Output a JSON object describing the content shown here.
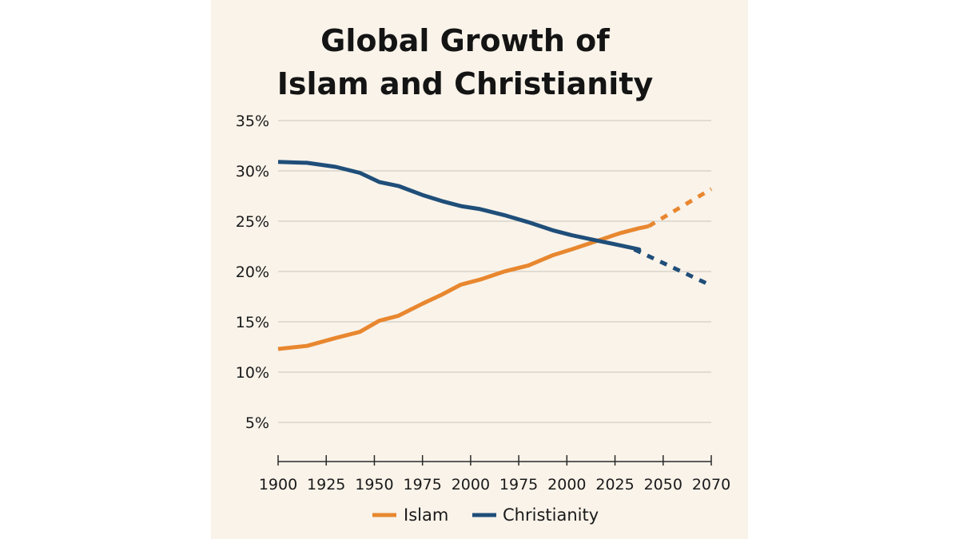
{
  "chart_data": {
    "type": "line",
    "title_lines": [
      "Global Growth of",
      "Islam and Christianity"
    ],
    "x_tick_labels": [
      "1900",
      "1925",
      "1950",
      "1975",
      "2000",
      "1975",
      "2000",
      "2025",
      "2050",
      "2070"
    ],
    "y_tick_labels": [
      "35%",
      "30%",
      "25%",
      "20%",
      "15%",
      "10%",
      "5%"
    ],
    "y_ticks": [
      35,
      30,
      25,
      20,
      15,
      10,
      5
    ],
    "ylim": [
      0,
      35
    ],
    "x_range": [
      0,
      9
    ],
    "grid": true,
    "legend_position": "bottom-center",
    "series": [
      {
        "name": "Islam",
        "color": "#e8872f",
        "x": [
          0,
          0.6,
          1.2,
          1.7,
          2.1,
          2.5,
          3.0,
          3.4,
          3.8,
          4.2,
          4.7,
          5.2,
          5.7,
          6.1,
          6.6,
          7.1,
          7.5,
          7.7
        ],
        "values": [
          12.3,
          12.6,
          13.4,
          14.0,
          15.1,
          15.6,
          16.8,
          17.7,
          18.7,
          19.2,
          20.0,
          20.6,
          21.6,
          22.2,
          23.0,
          23.8,
          24.3,
          24.5
        ],
        "projection_x": [
          7.7,
          9.0
        ],
        "projection_values": [
          24.5,
          28.2
        ]
      },
      {
        "name": "Christianity",
        "color": "#1f4e79",
        "x": [
          0,
          0.6,
          1.2,
          1.7,
          2.1,
          2.5,
          3.0,
          3.4,
          3.8,
          4.2,
          4.7,
          5.2,
          5.7,
          6.1,
          6.6,
          7.1,
          7.5,
          7.4
        ],
        "values": [
          30.9,
          30.8,
          30.4,
          29.8,
          28.9,
          28.5,
          27.6,
          27.0,
          26.5,
          26.2,
          25.6,
          24.9,
          24.1,
          23.6,
          23.1,
          22.6,
          22.2,
          22.2
        ],
        "projection_x": [
          7.4,
          9.0
        ],
        "projection_values": [
          22.2,
          18.6
        ]
      }
    ]
  }
}
